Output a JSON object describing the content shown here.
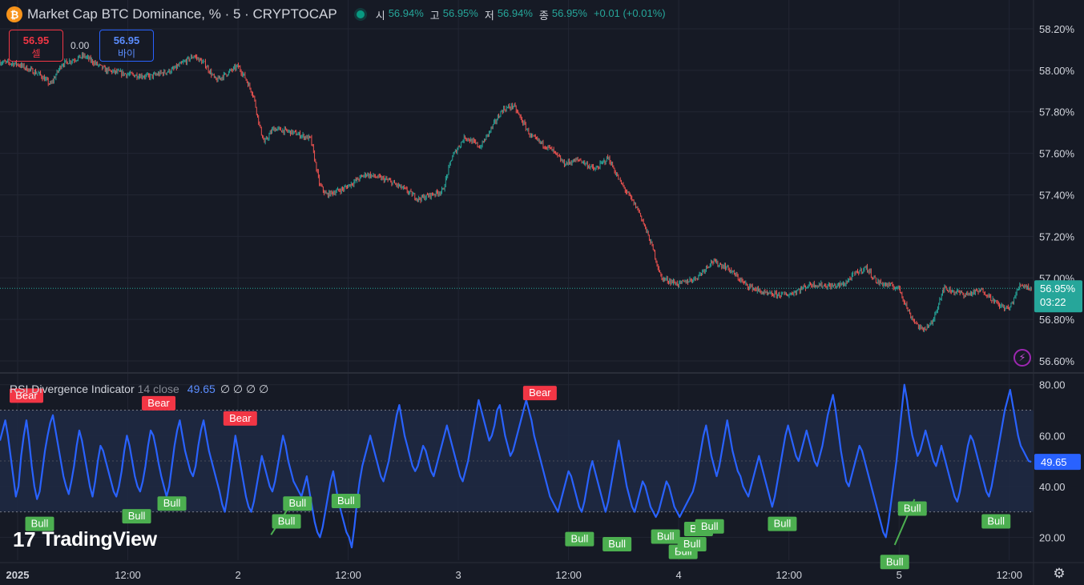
{
  "header": {
    "icon": "bitcoin-icon",
    "title": "Market Cap BTC Dominance, % · 5 · CRYPTOCAP",
    "ohlc": [
      {
        "label": "시",
        "value": "56.94%"
      },
      {
        "label": "고",
        "value": "56.95%"
      },
      {
        "label": "저",
        "value": "56.94%"
      },
      {
        "label": "종",
        "value": "56.95%"
      }
    ],
    "change": "+0.01 (+0.01%)"
  },
  "trade": {
    "sell_price": "56.95",
    "sell_label": "셀",
    "spread": "0.00",
    "buy_price": "56.95",
    "buy_label": "바이"
  },
  "indicator": {
    "name": "RSI Divergence Indicator",
    "params": "14 close",
    "value": "49.65",
    "extras": "∅ ∅ ∅ ∅"
  },
  "branding": {
    "logo": "TradingView"
  },
  "colors": {
    "background": "#161a25",
    "up": "#26a69a",
    "down": "#ef5350",
    "rsi": "#2962ff",
    "bear": "#f23645",
    "bull": "#4caf50",
    "band": "#1e2a44"
  },
  "chart_data": [
    {
      "type": "candlestick",
      "name": "price",
      "y_unit": "%",
      "ylim": [
        56.55,
        58.3
      ],
      "yticks": [
        "58.20%",
        "58.00%",
        "57.80%",
        "57.60%",
        "57.40%",
        "57.20%",
        "57.00%",
        "56.80%",
        "56.60%"
      ],
      "ytick_values": [
        58.2,
        58.0,
        57.8,
        57.6,
        57.4,
        57.2,
        57.0,
        56.8,
        56.6
      ],
      "x_labels": [
        "2025",
        "12:00",
        "2",
        "12:00",
        "3",
        "12:00",
        "4",
        "12:00",
        "5",
        "12:00"
      ],
      "x_label_positions": [
        0,
        0.5,
        1,
        1.5,
        2,
        2.5,
        3,
        3.5,
        4,
        4.5
      ],
      "xlim": [
        -0.08,
        4.61
      ],
      "last_price": "56.95%",
      "last_price_value": 56.95,
      "countdown": "03:22",
      "path": [
        [
          -0.08,
          58.04
        ],
        [
          0.0,
          58.03
        ],
        [
          0.1,
          57.98
        ],
        [
          0.15,
          57.93
        ],
        [
          0.2,
          58.03
        ],
        [
          0.3,
          58.07
        ],
        [
          0.4,
          58.0
        ],
        [
          0.5,
          57.98
        ],
        [
          0.6,
          57.97
        ],
        [
          0.7,
          58.0
        ],
        [
          0.8,
          58.07
        ],
        [
          0.85,
          58.03
        ],
        [
          0.9,
          57.95
        ],
        [
          1.0,
          58.02
        ],
        [
          1.03,
          57.97
        ],
        [
          1.07,
          57.88
        ],
        [
          1.1,
          57.72
        ],
        [
          1.12,
          57.65
        ],
        [
          1.16,
          57.72
        ],
        [
          1.25,
          57.7
        ],
        [
          1.33,
          57.67
        ],
        [
          1.37,
          57.45
        ],
        [
          1.4,
          57.4
        ],
        [
          1.48,
          57.43
        ],
        [
          1.58,
          57.5
        ],
        [
          1.68,
          57.47
        ],
        [
          1.75,
          57.43
        ],
        [
          1.82,
          57.38
        ],
        [
          1.93,
          57.42
        ],
        [
          1.97,
          57.58
        ],
        [
          2.03,
          57.68
        ],
        [
          2.1,
          57.63
        ],
        [
          2.2,
          57.81
        ],
        [
          2.25,
          57.83
        ],
        [
          2.33,
          57.68
        ],
        [
          2.42,
          57.62
        ],
        [
          2.48,
          57.55
        ],
        [
          2.55,
          57.57
        ],
        [
          2.62,
          57.52
        ],
        [
          2.68,
          57.58
        ],
        [
          2.73,
          57.47
        ],
        [
          2.82,
          57.32
        ],
        [
          2.88,
          57.15
        ],
        [
          2.92,
          57.0
        ],
        [
          3.0,
          56.97
        ],
        [
          3.08,
          57.0
        ],
        [
          3.15,
          57.08
        ],
        [
          3.22,
          57.05
        ],
        [
          3.3,
          56.97
        ],
        [
          3.4,
          56.92
        ],
        [
          3.5,
          56.92
        ],
        [
          3.6,
          56.97
        ],
        [
          3.7,
          56.96
        ],
        [
          3.75,
          56.97
        ],
        [
          3.8,
          57.02
        ],
        [
          3.85,
          57.05
        ],
        [
          3.9,
          56.98
        ],
        [
          4.0,
          56.95
        ],
        [
          4.05,
          56.82
        ],
        [
          4.1,
          56.75
        ],
        [
          4.15,
          56.78
        ],
        [
          4.2,
          56.95
        ],
        [
          4.3,
          56.92
        ],
        [
          4.38,
          56.94
        ],
        [
          4.45,
          56.87
        ],
        [
          4.5,
          56.85
        ],
        [
          4.55,
          56.97
        ],
        [
          4.6,
          56.95
        ]
      ]
    },
    {
      "type": "line",
      "name": "RSI Divergence Indicator",
      "ylim": [
        11,
        84
      ],
      "yticks": [
        "80.00",
        "60.00",
        "40.00",
        "20.00"
      ],
      "ytick_values": [
        80,
        60,
        40,
        20
      ],
      "band": [
        30,
        70
      ],
      "midline": 50,
      "last_value": "49.65",
      "last_value_numeric": 49.65,
      "series": [
        58,
        62,
        66,
        60,
        52,
        44,
        36,
        40,
        52,
        60,
        66,
        58,
        48,
        40,
        35,
        38,
        46,
        54,
        60,
        65,
        68,
        62,
        56,
        50,
        44,
        40,
        37,
        42,
        48,
        56,
        62,
        58,
        52,
        46,
        40,
        36,
        42,
        50,
        56,
        54,
        50,
        46,
        42,
        38,
        36,
        40,
        46,
        54,
        60,
        56,
        50,
        44,
        40,
        38,
        42,
        48,
        56,
        62,
        60,
        55,
        49,
        44,
        40,
        36,
        40,
        48,
        56,
        62,
        66,
        60,
        54,
        50,
        46,
        44,
        48,
        56,
        62,
        66,
        60,
        54,
        50,
        46,
        42,
        38,
        33,
        30,
        36,
        44,
        52,
        60,
        54,
        48,
        42,
        36,
        32,
        30,
        34,
        40,
        46,
        52,
        48,
        44,
        40,
        38,
        42,
        48,
        54,
        60,
        56,
        50,
        46,
        42,
        40,
        38,
        36,
        40,
        44,
        38,
        32,
        26,
        22,
        20,
        24,
        30,
        36,
        42,
        46,
        40,
        34,
        30,
        26,
        22,
        20,
        16,
        24,
        34,
        42,
        48,
        52,
        56,
        60,
        56,
        52,
        48,
        44,
        42,
        46,
        50,
        56,
        62,
        68,
        72,
        66,
        60,
        56,
        52,
        48,
        46,
        48,
        52,
        56,
        54,
        50,
        46,
        44,
        48,
        52,
        56,
        60,
        64,
        60,
        56,
        52,
        48,
        44,
        42,
        46,
        50,
        56,
        62,
        68,
        74,
        70,
        66,
        62,
        58,
        60,
        64,
        70,
        72,
        66,
        60,
        56,
        52,
        54,
        58,
        62,
        66,
        70,
        74,
        70,
        66,
        60,
        56,
        52,
        48,
        44,
        40,
        36,
        34,
        32,
        30,
        34,
        38,
        42,
        46,
        44,
        40,
        36,
        32,
        30,
        34,
        40,
        46,
        50,
        46,
        42,
        38,
        34,
        30,
        34,
        40,
        46,
        52,
        58,
        52,
        46,
        40,
        36,
        32,
        30,
        34,
        38,
        42,
        40,
        36,
        32,
        30,
        28,
        30,
        34,
        38,
        42,
        40,
        36,
        32,
        30,
        28,
        30,
        32,
        34,
        36,
        38,
        42,
        48,
        54,
        60,
        64,
        58,
        52,
        48,
        44,
        48,
        54,
        60,
        66,
        60,
        54,
        50,
        46,
        44,
        40,
        38,
        36,
        40,
        44,
        48,
        52,
        48,
        44,
        40,
        36,
        32,
        36,
        42,
        48,
        54,
        60,
        64,
        60,
        56,
        52,
        50,
        54,
        58,
        62,
        58,
        54,
        50,
        48,
        52,
        56,
        62,
        68,
        72,
        76,
        70,
        62,
        54,
        48,
        42,
        40,
        44,
        48,
        52,
        56,
        54,
        50,
        46,
        42,
        38,
        34,
        30,
        26,
        22,
        20,
        26,
        34,
        42,
        50,
        60,
        70,
        80,
        74,
        66,
        60,
        56,
        52,
        54,
        58,
        62,
        58,
        54,
        50,
        48,
        52,
        56,
        52,
        48,
        44,
        40,
        36,
        34,
        38,
        44,
        50,
        56,
        60,
        58,
        54,
        50,
        46,
        42,
        38,
        36,
        40,
        46,
        52,
        58,
        64,
        70,
        74,
        78,
        72,
        66,
        60,
        56,
        54,
        52,
        50,
        49.65
      ],
      "signals": [
        {
          "label": "Bear",
          "x": 0.04,
          "value": 71,
          "type": "bear"
        },
        {
          "label": "Bear",
          "x": 0.64,
          "value": 68,
          "type": "bear"
        },
        {
          "label": "Bear",
          "x": 1.01,
          "value": 62,
          "type": "bear"
        },
        {
          "label": "Bear",
          "x": 2.37,
          "value": 72,
          "type": "bear"
        },
        {
          "label": "Bull",
          "x": 0.1,
          "value": 30,
          "type": "bull"
        },
        {
          "label": "Bull",
          "x": 0.54,
          "value": 33,
          "type": "bull"
        },
        {
          "label": "Bull",
          "x": 0.7,
          "value": 38,
          "type": "bull"
        },
        {
          "label": "Bull",
          "x": 1.22,
          "value": 31,
          "type": "bull"
        },
        {
          "label": "Bull",
          "x": 1.27,
          "value": 38,
          "type": "bull"
        },
        {
          "label": "Bull",
          "x": 1.49,
          "value": 39,
          "type": "bull"
        },
        {
          "label": "Bull",
          "x": 2.55,
          "value": 24,
          "type": "bull"
        },
        {
          "label": "Bull",
          "x": 2.72,
          "value": 22,
          "type": "bull"
        },
        {
          "label": "Bull",
          "x": 2.94,
          "value": 25,
          "type": "bull"
        },
        {
          "label": "Bull",
          "x": 3.02,
          "value": 19,
          "type": "bull"
        },
        {
          "label": "Bull",
          "x": 3.06,
          "value": 22,
          "type": "bull"
        },
        {
          "label": "Bull",
          "x": 3.09,
          "value": 28,
          "type": "bull"
        },
        {
          "label": "Bull",
          "x": 3.14,
          "value": 29,
          "type": "bull"
        },
        {
          "label": "Bull",
          "x": 3.47,
          "value": 30,
          "type": "bull"
        },
        {
          "label": "Bull",
          "x": 3.98,
          "value": 15,
          "type": "bull"
        },
        {
          "label": "Bull",
          "x": 4.06,
          "value": 36,
          "type": "bull"
        },
        {
          "label": "Bull",
          "x": 4.44,
          "value": 31,
          "type": "bull"
        }
      ],
      "divergence_lines": [
        {
          "from": [
            1.15,
            21
          ],
          "to": [
            1.24,
            33
          ]
        },
        {
          "from": [
            3.98,
            17
          ],
          "to": [
            4.07,
            35
          ]
        }
      ]
    }
  ]
}
